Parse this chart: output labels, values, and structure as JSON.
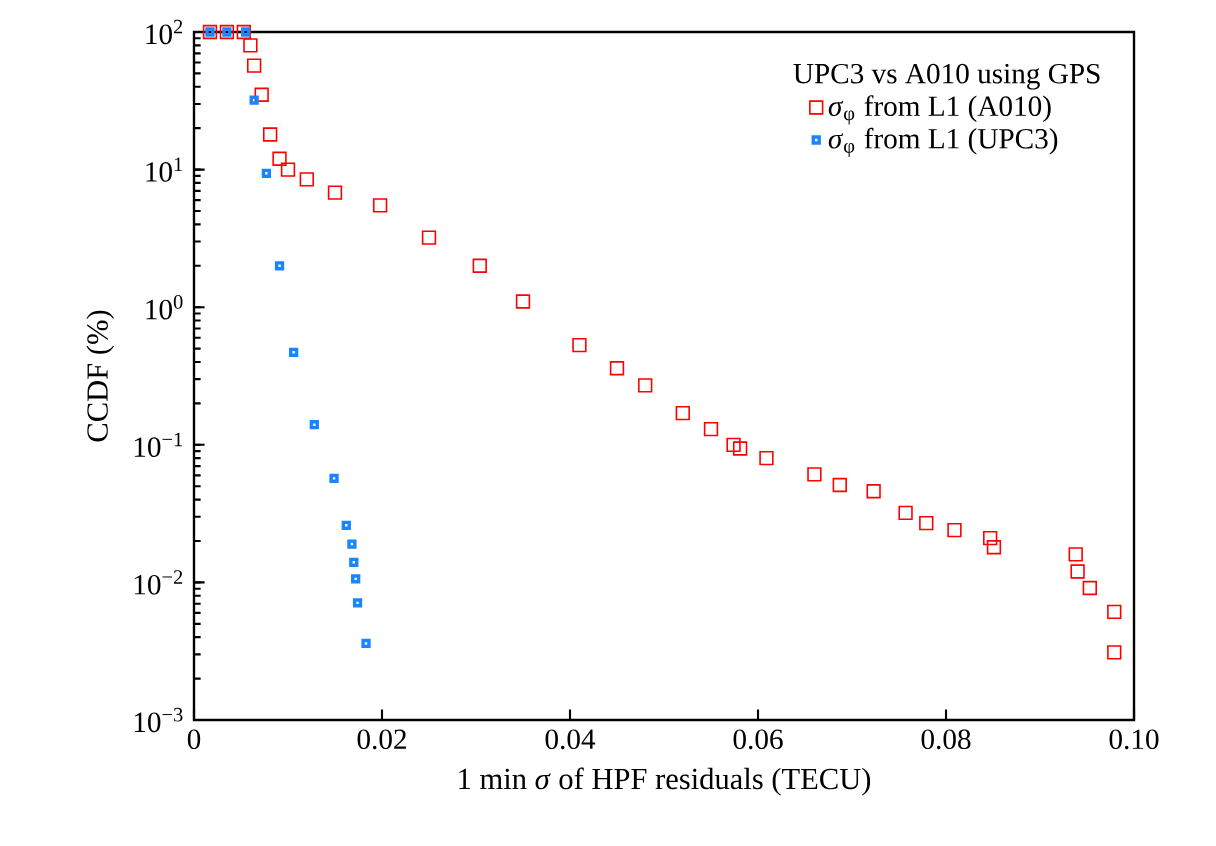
{
  "chart_data": {
    "type": "scatter",
    "xlabel": "1 min *σ* of HPF residuals (TECU)",
    "ylabel": "CCDF (%)",
    "legend_title": "UPC3 vs A010 using GPS",
    "legend": "top right",
    "log": "y",
    "grid": false,
    "marker": "square",
    "xlim": [
      0,
      0.1
    ],
    "ylim": [
      0.001,
      100
    ],
    "xticks": [
      {
        "value": 0,
        "label": "0"
      },
      {
        "value": 0.02,
        "label": "0.02"
      },
      {
        "value": 0.04,
        "label": "0.04"
      },
      {
        "value": 0.06,
        "label": "0.06"
      },
      {
        "value": 0.08,
        "label": "0.08"
      },
      {
        "value": 0.1,
        "label": "0.10"
      }
    ],
    "yticks": [
      {
        "value": 0.001,
        "label": "10$^{−3}$"
      },
      {
        "value": 0.01,
        "label": "10$^{−2}$"
      },
      {
        "value": 0.1,
        "label": "10$^{−1}$"
      },
      {
        "value": 1,
        "label": "10$^{0}$"
      },
      {
        "value": 10,
        "label": "10$^{1}$"
      },
      {
        "value": 100,
        "label": "10$^{2}$"
      }
    ],
    "series": [
      {
        "name": "*σ*$_{φ}$ from L1 (A010)",
        "color": "#ff0000",
        "x": [
          0.0017,
          0.0035,
          0.0053,
          0.006,
          0.0064,
          0.0072,
          0.0081,
          0.0091,
          0.01,
          0.012,
          0.015,
          0.0198,
          0.025,
          0.0304,
          0.035,
          0.041,
          0.045,
          0.048,
          0.052,
          0.055,
          0.0574,
          0.0581,
          0.0609,
          0.066,
          0.0687,
          0.0723,
          0.0757,
          0.0779,
          0.0809,
          0.0847,
          0.0851,
          0.0938,
          0.094,
          0.0953,
          0.0979,
          0.0979
        ],
        "values": [
          100,
          100,
          100,
          80,
          57,
          35,
          18,
          12,
          10,
          8.5,
          6.8,
          5.5,
          3.2,
          2.0,
          1.1,
          0.53,
          0.36,
          0.27,
          0.17,
          0.13,
          0.1,
          0.094,
          0.08,
          0.061,
          0.051,
          0.046,
          0.032,
          0.027,
          0.024,
          0.021,
          0.018,
          0.016,
          0.012,
          0.0091,
          0.0061,
          0.0031
        ]
      },
      {
        "name": "*σ*$_{φ}$ from L1 (UPC3)",
        "color": "#1a85ff",
        "x": [
          0.0017,
          0.0035,
          0.0055,
          0.0064,
          0.0077,
          0.0091,
          0.0106,
          0.0128,
          0.0149,
          0.0162,
          0.0168,
          0.017,
          0.0172,
          0.0174,
          0.0183
        ],
        "values": [
          100,
          100,
          100,
          32,
          9.4,
          2.0,
          0.47,
          0.14,
          0.057,
          0.026,
          0.019,
          0.014,
          0.0106,
          0.0071,
          0.0036
        ]
      }
    ]
  }
}
